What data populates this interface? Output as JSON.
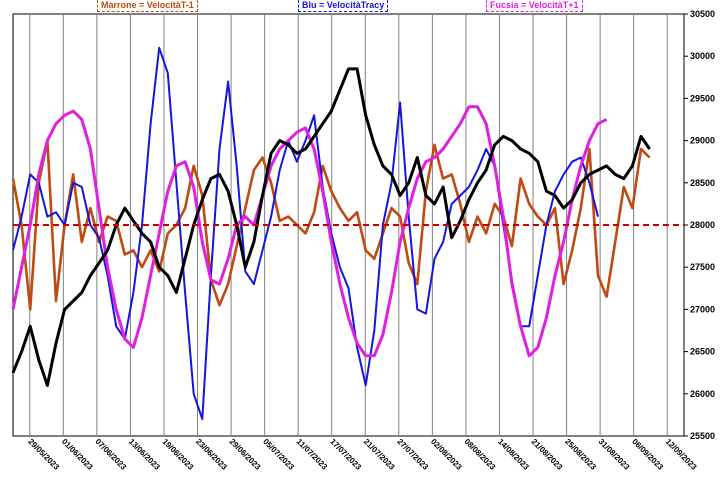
{
  "legend": {
    "marrone": "Marrone = VelocitàT-1",
    "blu": "Blu = VelocitàTracy",
    "fucsia": "Fucsia = VelocitàT+1"
  },
  "colors": {
    "black": "#000000",
    "marrone": "#c04a10",
    "blu": "#1515e0",
    "fucsia": "#e020e0",
    "reference": "#cc0000",
    "grid": "#808080",
    "background": "#ffffff"
  },
  "chart_data": {
    "type": "line",
    "title": "",
    "xlabel": "",
    "ylabel": "",
    "ylim": [
      25500,
      30500
    ],
    "y_ticks": [
      25500,
      26000,
      26500,
      27000,
      27500,
      28000,
      28500,
      29000,
      29500,
      30000,
      30500
    ],
    "x_tick_labels": [
      "29/05/2023",
      "01/06/2023",
      "07/06/2023",
      "13/06/2023",
      "19/06/2023",
      "23/06/2023",
      "29/06/2023",
      "05/07/2023",
      "11/07/2023",
      "17/07/2023",
      "21/07/2023",
      "27/07/2023",
      "02/08/2023",
      "08/08/2023",
      "14/08/2023",
      "21/08/2023",
      "25/08/2023",
      "31/08/2023",
      "06/09/2023",
      "12/09/2023"
    ],
    "x_count": 79,
    "x_future_start": 75,
    "reference_line": 28000,
    "grid": "vertical",
    "y_axis_side": "right",
    "series": [
      {
        "key": "black",
        "values": [
          26250,
          26500,
          26800,
          26400,
          26100,
          26600,
          27000,
          27100,
          27200,
          27400,
          27550,
          27700,
          28000,
          28200,
          28050,
          27900,
          27800,
          27500,
          27400,
          27200,
          27600,
          28000,
          28300,
          28550,
          28600,
          28400,
          28000,
          27500,
          27800,
          28350,
          28850,
          29000,
          28950,
          28850,
          28900,
          29050,
          29200,
          29350,
          29600,
          29850,
          29850,
          29300,
          28950,
          28700,
          28600,
          28350,
          28500,
          28800,
          28350,
          28250,
          28450,
          27850,
          28050,
          28300,
          28500,
          28650,
          28950,
          29050,
          29000,
          28900,
          28850,
          28750,
          28400,
          28350,
          28200,
          28300,
          28500,
          28600,
          28650,
          28700,
          28600,
          28550,
          28700,
          29050,
          28900
        ]
      },
      {
        "key": "marrone",
        "values": [
          28550,
          28000,
          27000,
          28500,
          29000,
          27100,
          28000,
          28600,
          27800,
          28200,
          27800,
          28100,
          28050,
          27650,
          27700,
          27500,
          27700,
          27450,
          27900,
          28000,
          28200,
          28700,
          28350,
          27350,
          27050,
          27300,
          27750,
          28200,
          28650,
          28800,
          28500,
          28050,
          28100,
          28000,
          27900,
          28150,
          28700,
          28400,
          28200,
          28050,
          28150,
          27700,
          27600,
          27900,
          28200,
          28100,
          27550,
          27300,
          28400,
          28950,
          28550,
          28600,
          28250,
          27800,
          28100,
          27900,
          28250,
          28100,
          27750,
          28550,
          28250,
          28100,
          28000,
          28200,
          27300,
          27700,
          28200,
          28900,
          27400,
          27150,
          27800,
          28450,
          28200,
          28900,
          28800
        ]
      },
      {
        "key": "blu",
        "values": [
          27700,
          28100,
          28600,
          28500,
          28100,
          28150,
          28000,
          28500,
          28450,
          28000,
          27850,
          27400,
          26800,
          26650,
          27200,
          28000,
          29200,
          30100,
          29800,
          28500,
          27200,
          26000,
          25700,
          27400,
          28900,
          29700,
          28700,
          27450,
          27300,
          27700,
          28100,
          28650,
          29000,
          28750,
          29000,
          29300,
          28450,
          27900,
          27500,
          27250,
          26550,
          26100,
          26750,
          28000,
          28500,
          29450,
          28100,
          27000,
          26950,
          27600,
          27800,
          28250,
          28350,
          28450,
          28650,
          28900,
          28700,
          28000,
          27350,
          26800,
          26800,
          27400,
          28000,
          28400,
          28600,
          28750,
          28800,
          28500,
          28100
        ]
      },
      {
        "key": "fucsia",
        "values": [
          27000,
          27500,
          28000,
          28600,
          29000,
          29200,
          29300,
          29350,
          29250,
          28900,
          28200,
          27500,
          27000,
          26650,
          26550,
          26900,
          27400,
          27900,
          28400,
          28700,
          28750,
          28450,
          27800,
          27350,
          27300,
          27600,
          28000,
          28100,
          28000,
          28350,
          28700,
          28900,
          29000,
          29100,
          29150,
          28900,
          28400,
          27800,
          27300,
          26900,
          26600,
          26450,
          26450,
          26700,
          27200,
          27800,
          28200,
          28550,
          28750,
          28800,
          28900,
          29050,
          29200,
          29400,
          29400,
          29200,
          28700,
          28100,
          27300,
          26800,
          26450,
          26550,
          26900,
          27400,
          27800,
          28300,
          28700,
          29000,
          29200,
          29250
        ]
      }
    ]
  }
}
